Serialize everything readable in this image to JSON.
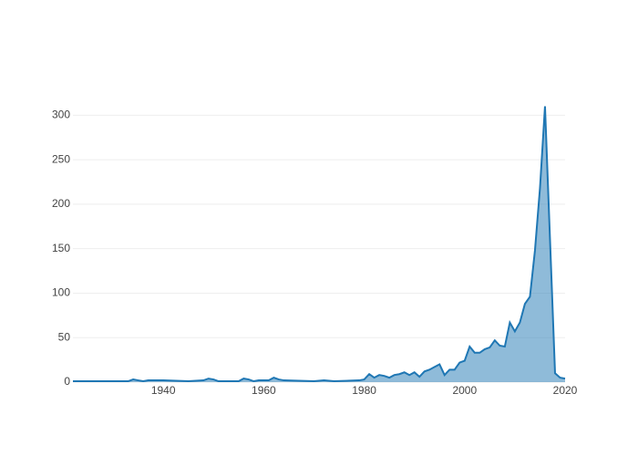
{
  "chart_data": {
    "type": "area",
    "x": [
      1922,
      1925,
      1930,
      1933,
      1934,
      1935,
      1936,
      1937,
      1940,
      1945,
      1948,
      1949,
      1950,
      1951,
      1955,
      1956,
      1957,
      1958,
      1959,
      1961,
      1962,
      1963,
      1964,
      1970,
      1972,
      1974,
      1979,
      1980,
      1981,
      1982,
      1983,
      1984,
      1985,
      1986,
      1987,
      1988,
      1989,
      1990,
      1991,
      1992,
      1993,
      1994,
      1995,
      1996,
      1997,
      1998,
      1999,
      2000,
      2001,
      2002,
      2003,
      2004,
      2005,
      2006,
      2007,
      2008,
      2009,
      2010,
      2011,
      2012,
      2013,
      2014,
      2015,
      2016,
      2017,
      2018,
      2019,
      2020
    ],
    "values": [
      1,
      1,
      1,
      1,
      3,
      2,
      1,
      2,
      2,
      1,
      2,
      4,
      3,
      1,
      1,
      4,
      3,
      1,
      2,
      2,
      5,
      3,
      2,
      1,
      2,
      1,
      2,
      3,
      9,
      5,
      8,
      7,
      5,
      8,
      9,
      11,
      8,
      11,
      6,
      12,
      14,
      17,
      20,
      8,
      14,
      14,
      22,
      24,
      40,
      33,
      33,
      37,
      39,
      47,
      41,
      40,
      67,
      57,
      67,
      88,
      96,
      148,
      218,
      310,
      160,
      10,
      5,
      4
    ],
    "color": "#1f77b4",
    "xlim": [
      1922,
      2020
    ],
    "xticks": [
      1940,
      1960,
      1980,
      2000,
      2020
    ],
    "ylim": [
      0,
      327
    ],
    "yticks": [
      0,
      50,
      100,
      150,
      200,
      250,
      300
    ],
    "grid": true
  }
}
